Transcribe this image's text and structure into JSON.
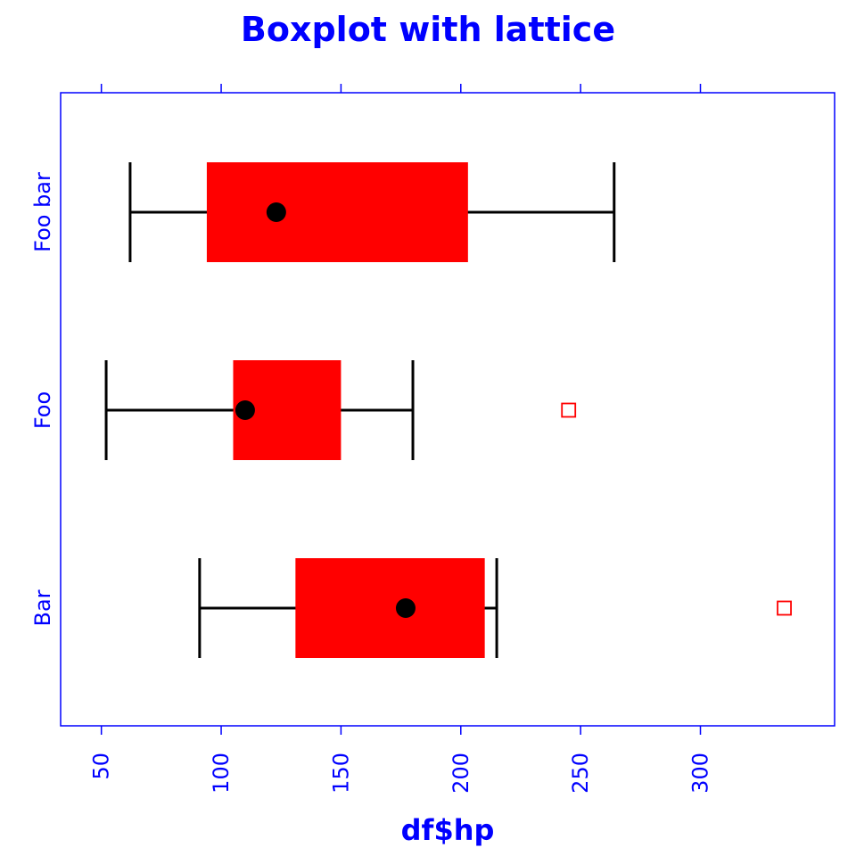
{
  "chart_data": {
    "type": "boxplot",
    "title": "Boxplot with lattice",
    "xlabel": "df$hp",
    "ylabel": "",
    "xlim": [
      33,
      356
    ],
    "xticks": [
      50,
      100,
      150,
      200,
      250,
      300
    ],
    "xtick_labels": [
      "50",
      "100",
      "150",
      "200",
      "250",
      "300"
    ],
    "categories": [
      "Bar",
      "Foo",
      "Foo bar"
    ],
    "boxes": [
      {
        "category": "Bar",
        "whisker_low": 91,
        "q1": 131,
        "median": 177,
        "q3": 210,
        "whisker_high": 215,
        "outliers": [
          335
        ]
      },
      {
        "category": "Foo",
        "whisker_low": 52,
        "q1": 105,
        "median": 110,
        "q3": 150,
        "whisker_high": 180,
        "outliers": [
          245
        ]
      },
      {
        "category": "Foo bar",
        "whisker_low": 62,
        "q1": 94,
        "median": 123,
        "q3": 203,
        "whisker_high": 264,
        "outliers": []
      }
    ],
    "grid": false,
    "colors": {
      "box_fill": "#ff0000",
      "whisker": "#000000",
      "median_dot": "#000000",
      "outlier": "#ff0000",
      "text": "#0000ff",
      "frame": "#0000ff"
    }
  }
}
